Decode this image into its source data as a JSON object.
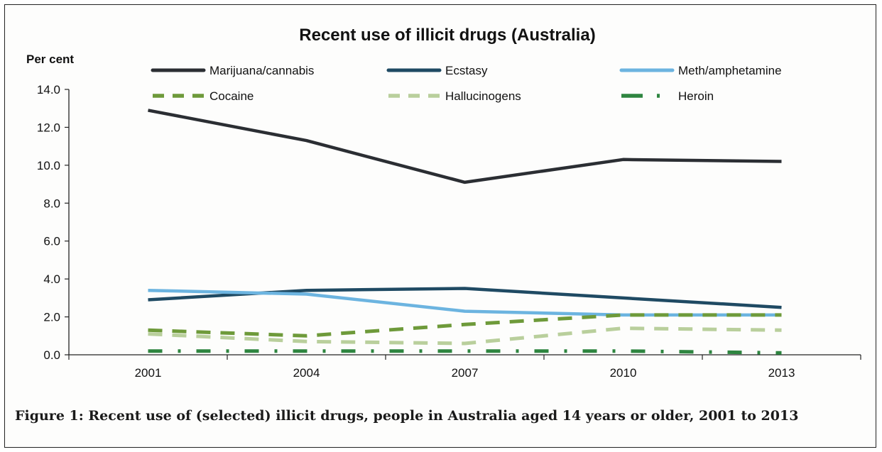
{
  "chart_data": {
    "type": "line",
    "title": "Recent use of illicit drugs (Australia)",
    "ylabel": "Per cent",
    "xlabel": "",
    "x": [
      "2001",
      "2004",
      "2007",
      "2010",
      "2013"
    ],
    "ylim": [
      0,
      14
    ],
    "yticks": [
      "0.0",
      "2.0",
      "4.0",
      "6.0",
      "8.0",
      "10.0",
      "12.0",
      "14.0"
    ],
    "grid": false,
    "legend_position": "top",
    "series": [
      {
        "name": "Marijuana/cannabis",
        "values": [
          12.9,
          11.3,
          9.1,
          10.3,
          10.2
        ],
        "color": "#2b2e33",
        "style": "solid"
      },
      {
        "name": "Ecstasy",
        "values": [
          2.9,
          3.4,
          3.5,
          3.0,
          2.5
        ],
        "color": "#1f4a63",
        "style": "solid"
      },
      {
        "name": "Meth/amphetamine",
        "values": [
          3.4,
          3.2,
          2.3,
          2.1,
          2.1
        ],
        "color": "#6cb4e0",
        "style": "solid"
      },
      {
        "name": "Cocaine",
        "values": [
          1.3,
          1.0,
          1.6,
          2.1,
          2.1
        ],
        "color": "#6e9a3a",
        "style": "dash"
      },
      {
        "name": "Hallucinogens",
        "values": [
          1.1,
          0.7,
          0.6,
          1.4,
          1.3
        ],
        "color": "#b9cf9c",
        "style": "dash"
      },
      {
        "name": "Heroin",
        "values": [
          0.2,
          0.2,
          0.2,
          0.2,
          0.1
        ],
        "color": "#2e8540",
        "style": "dashdot"
      }
    ]
  },
  "caption": "Figure 1: Recent use of (selected) illicit drugs, people in Australia aged 14 years or older, 2001 to 2013"
}
